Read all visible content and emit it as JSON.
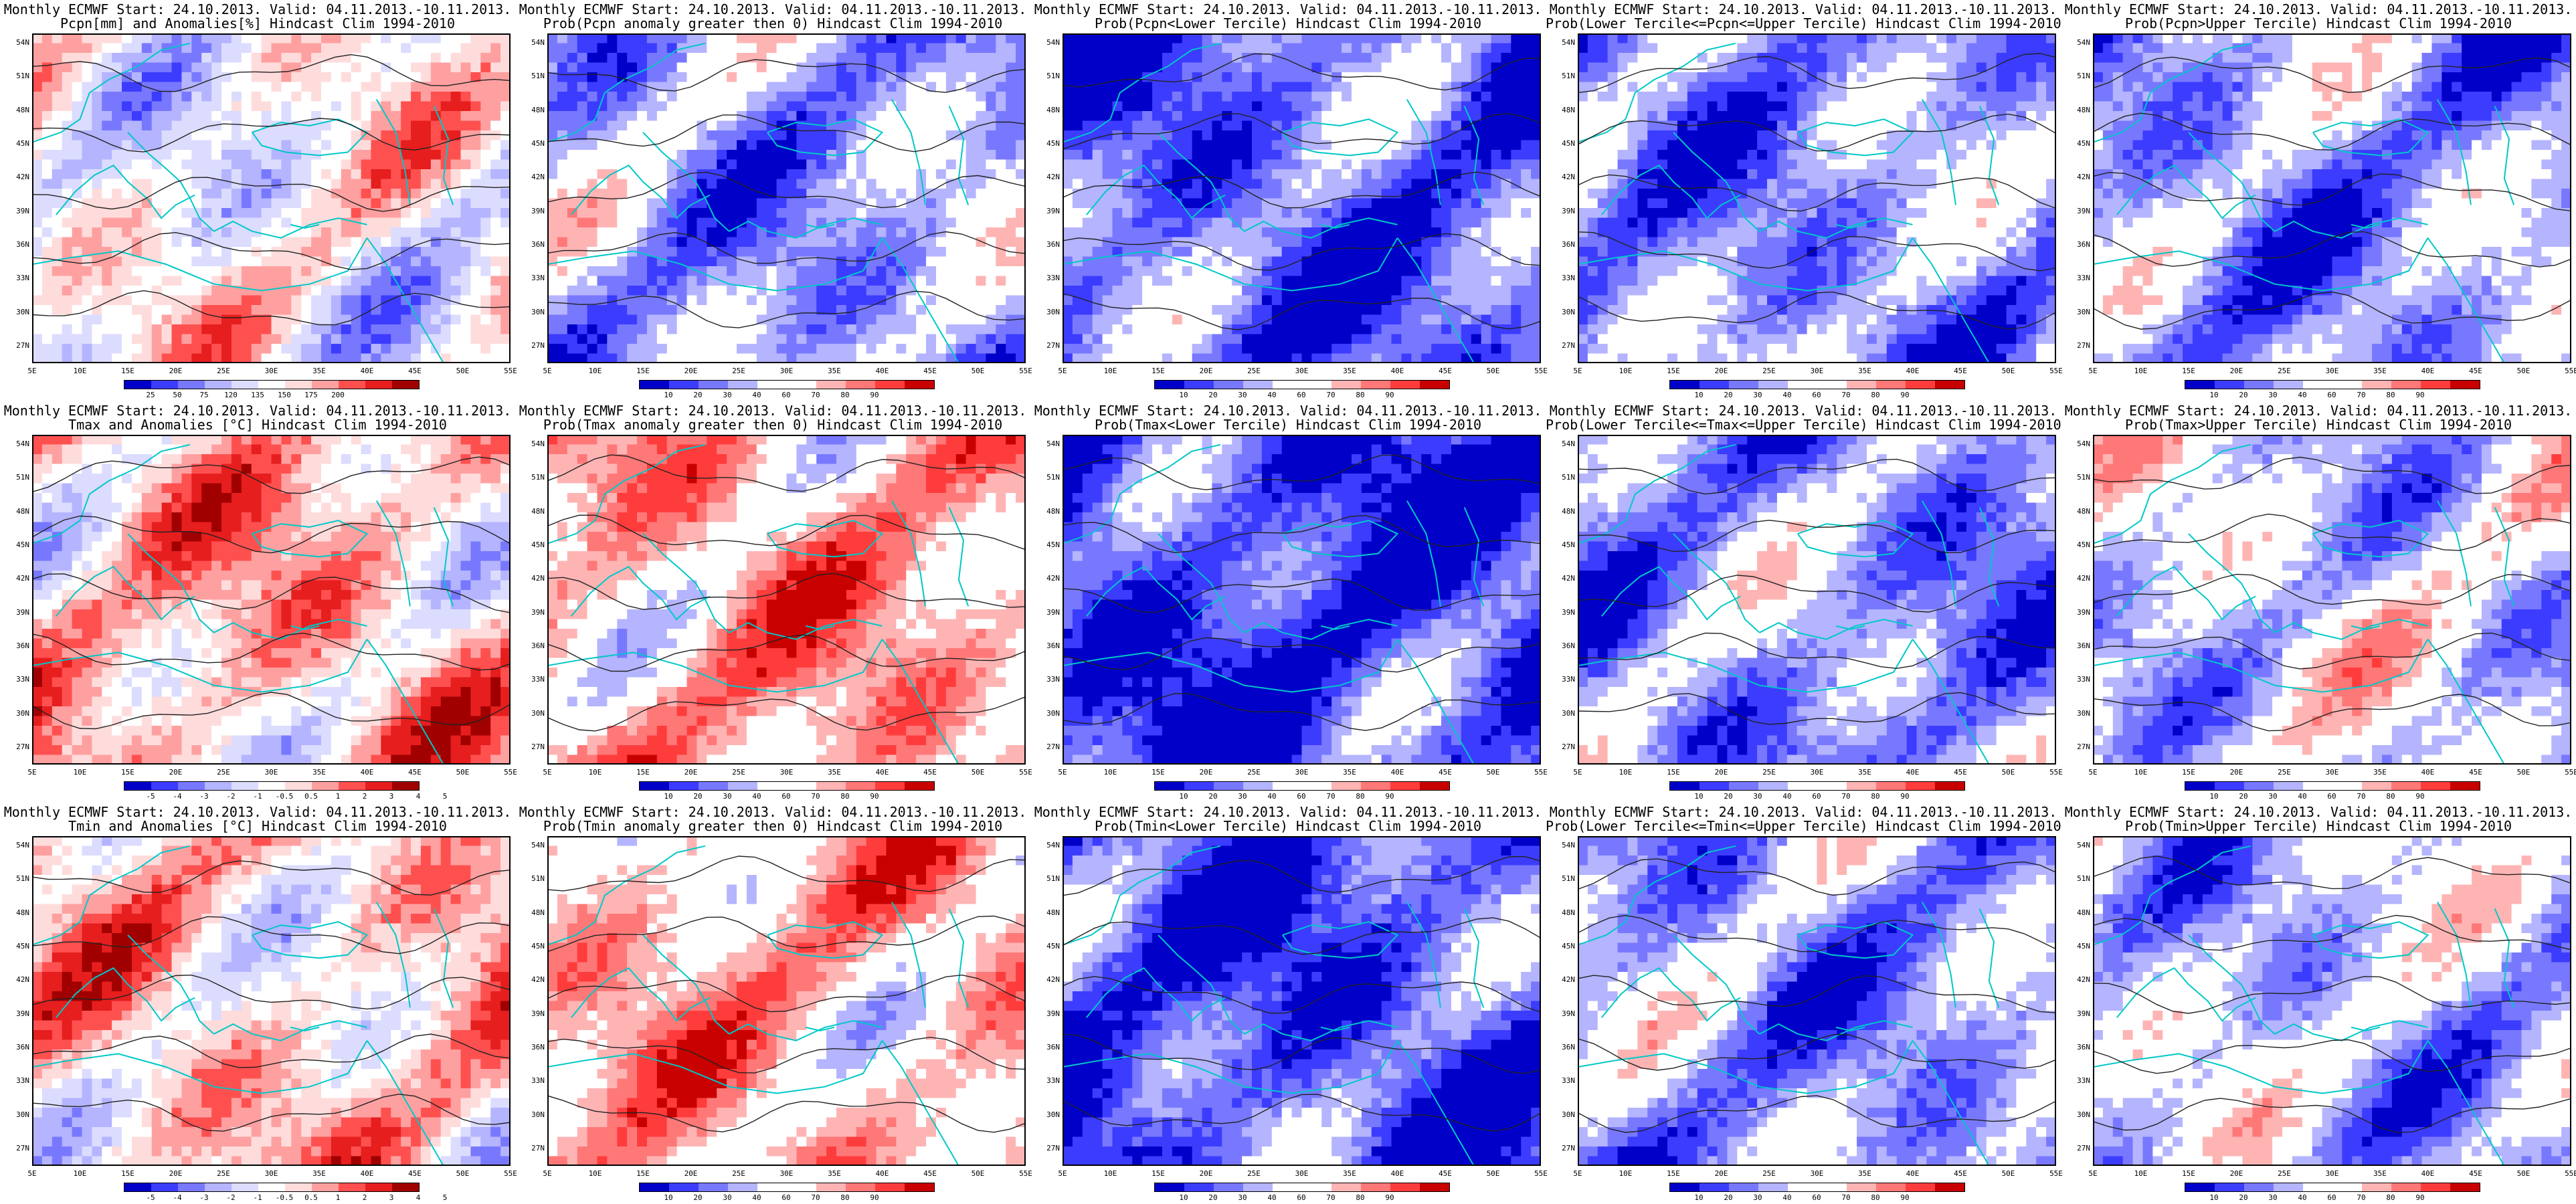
{
  "axes": {
    "lat_labels": [
      "54N",
      "51N",
      "48N",
      "45N",
      "42N",
      "39N",
      "36N",
      "33N",
      "30N",
      "27N"
    ],
    "lon_labels": [
      "5E",
      "10E",
      "15E",
      "20E",
      "25E",
      "30E",
      "35E",
      "40E",
      "45E",
      "50E",
      "55E"
    ]
  },
  "colors": {
    "deep_blue": "#0000c8",
    "blue": "#3c3cff",
    "mid_blue": "#7878ff",
    "light_blue": "#b4b4ff",
    "pale_blue": "#dcdcff",
    "white": "#ffffff",
    "pale_red": "#ffdcdc",
    "light_red": "#ffa0a0",
    "red": "#ff5050",
    "mid_red": "#e61e1e",
    "deep_red": "#a00000",
    "coast": "#00c8c8"
  },
  "palettes": {
    "precip_anom": [
      "#0000c8",
      "#3c3cff",
      "#7878ff",
      "#b4b4ff",
      "#dcdcff",
      "#ffffff",
      "#ffdcdc",
      "#ffa0a0",
      "#ff5050",
      "#e61e1e",
      "#a00000"
    ],
    "temp_anom": [
      "#0000c8",
      "#3c3cff",
      "#7878ff",
      "#b4b4ff",
      "#dcdcff",
      "#ffffff",
      "#ffdcdc",
      "#ffa0a0",
      "#ff5050",
      "#e61e1e",
      "#a00000"
    ],
    "prob": [
      "#0000c8",
      "#3c3cff",
      "#7878ff",
      "#b4b4ff",
      "#ffffff",
      "#ffffff",
      "#ffb4b4",
      "#ff7878",
      "#ff3c3c",
      "#c80000"
    ]
  },
  "colorbars": {
    "precip_anom": [
      "25",
      "50",
      "75",
      "120",
      "135",
      "150",
      "175",
      "200"
    ],
    "temp_anom": [
      "-5",
      "-4",
      "-3",
      "-2",
      "-1",
      "-0.5",
      "0.5",
      "1",
      "2",
      "3",
      "4",
      "5"
    ],
    "prob": [
      "10",
      "20",
      "30",
      "40",
      "60",
      "70",
      "80",
      "90"
    ]
  },
  "panels": [
    {
      "id": "r1c1",
      "row": 0,
      "col": 0,
      "line1": "Monthly ECMWF Start: 24.10.2013. Valid: 04.11.2013.-10.11.2013.",
      "line2": "Pcpn[mm] and Anomalies[%] Hindcast Clim 1994-2010",
      "palette": "precip_anom",
      "colorbar": "precip_anom",
      "bias": 0.5,
      "seed": 11
    },
    {
      "id": "r1c2",
      "row": 0,
      "col": 1,
      "line1": "Monthly ECMWF Start: 24.10.2013. Valid: 04.11.2013.-10.11.2013.",
      "line2": "Prob(Pcpn anomaly greater then 0) Hindcast Clim 1994-2010",
      "palette": "prob",
      "colorbar": "prob",
      "bias": 0.33,
      "seed": 12
    },
    {
      "id": "r1c3",
      "row": 0,
      "col": 2,
      "line1": "Monthly ECMWF Start: 24.10.2013. Valid: 04.11.2013.-10.11.2013.",
      "line2": "Prob(Pcpn<Lower Tercile) Hindcast Clim 1994-2010",
      "palette": "prob",
      "colorbar": "prob",
      "bias": 0.22,
      "seed": 13
    },
    {
      "id": "r1c4",
      "row": 0,
      "col": 3,
      "line1": "Monthly ECMWF Start: 24.10.2013. Valid: 04.11.2013.-10.11.2013.",
      "line2": "Prob(Lower Tercile<=Pcpn<=Upper Tercile) Hindcast Clim 1994-2010",
      "palette": "prob",
      "colorbar": "prob",
      "bias": 0.3,
      "seed": 14
    },
    {
      "id": "r1c5",
      "row": 0,
      "col": 4,
      "line1": "Monthly ECMWF Start: 24.10.2013. Valid: 04.11.2013.-10.11.2013.",
      "line2": "Prob(Pcpn>Upper Tercile) Hindcast Clim 1994-2010",
      "palette": "prob",
      "colorbar": "prob",
      "bias": 0.32,
      "seed": 15
    },
    {
      "id": "r2c1",
      "row": 1,
      "col": 0,
      "line1": "Monthly ECMWF Start: 24.10.2013. Valid: 04.11.2013.-10.11.2013.",
      "line2": "Tmax and Anomalies [°C] Hindcast Clim 1994-2010",
      "palette": "temp_anom",
      "colorbar": "temp_anom",
      "bias": 0.62,
      "seed": 21
    },
    {
      "id": "r2c2",
      "row": 1,
      "col": 1,
      "line1": "Monthly ECMWF Start: 24.10.2013. Valid: 04.11.2013.-10.11.2013.",
      "line2": "Prob(Tmax anomaly greater then 0) Hindcast Clim 1994-2010",
      "palette": "prob",
      "colorbar": "prob",
      "bias": 0.66,
      "seed": 22
    },
    {
      "id": "r2c3",
      "row": 1,
      "col": 2,
      "line1": "Monthly ECMWF Start: 24.10.2013. Valid: 04.11.2013.-10.11.2013.",
      "line2": "Prob(Tmax<Lower Tercile) Hindcast Clim 1994-2010",
      "palette": "prob",
      "colorbar": "prob",
      "bias": 0.15,
      "seed": 23
    },
    {
      "id": "r2c4",
      "row": 1,
      "col": 3,
      "line1": "Monthly ECMWF Start: 24.10.2013. Valid: 04.11.2013.-10.11.2013.",
      "line2": "Prob(Lower Tercile<=Tmax<=Upper Tercile) Hindcast Clim 1994-2010",
      "palette": "prob",
      "colorbar": "prob",
      "bias": 0.3,
      "seed": 24
    },
    {
      "id": "r2c5",
      "row": 1,
      "col": 4,
      "line1": "Monthly ECMWF Start: 24.10.2013. Valid: 04.11.2013.-10.11.2013.",
      "line2": "Prob(Tmax>Upper Tercile) Hindcast Clim 1994-2010",
      "palette": "prob",
      "colorbar": "prob",
      "bias": 0.42,
      "seed": 25
    },
    {
      "id": "r3c1",
      "row": 2,
      "col": 0,
      "line1": "Monthly ECMWF Start: 24.10.2013. Valid: 04.11.2013.-10.11.2013.",
      "line2": "Tmin and Anomalies [°C] Hindcast Clim 1994-2010",
      "palette": "temp_anom",
      "colorbar": "temp_anom",
      "bias": 0.6,
      "seed": 31
    },
    {
      "id": "r3c2",
      "row": 2,
      "col": 1,
      "line1": "Monthly ECMWF Start: 24.10.2013. Valid: 04.11.2013.-10.11.2013.",
      "line2": "Prob(Tmin anomaly greater then 0) Hindcast Clim 1994-2010",
      "palette": "prob",
      "colorbar": "prob",
      "bias": 0.64,
      "seed": 32
    },
    {
      "id": "r3c3",
      "row": 2,
      "col": 2,
      "line1": "Monthly ECMWF Start: 24.10.2013. Valid: 04.11.2013.-10.11.2013.",
      "line2": "Prob(Tmin<Lower Tercile) Hindcast Clim 1994-2010",
      "palette": "prob",
      "colorbar": "prob",
      "bias": 0.18,
      "seed": 33
    },
    {
      "id": "r3c4",
      "row": 2,
      "col": 3,
      "line1": "Monthly ECMWF Start: 24.10.2013. Valid: 04.11.2013.-10.11.2013.",
      "line2": "Prob(Lower Tercile<=Tmin<=Upper Tercile) Hindcast Clim 1994-2010",
      "palette": "prob",
      "colorbar": "prob",
      "bias": 0.32,
      "seed": 34
    },
    {
      "id": "r3c5",
      "row": 2,
      "col": 4,
      "line1": "Monthly ECMWF Start: 24.10.2013. Valid: 04.11.2013.-10.11.2013.",
      "line2": "Prob(Tmin>Upper Tercile) Hindcast Clim 1994-2010",
      "palette": "prob",
      "colorbar": "prob",
      "bias": 0.38,
      "seed": 35
    }
  ]
}
